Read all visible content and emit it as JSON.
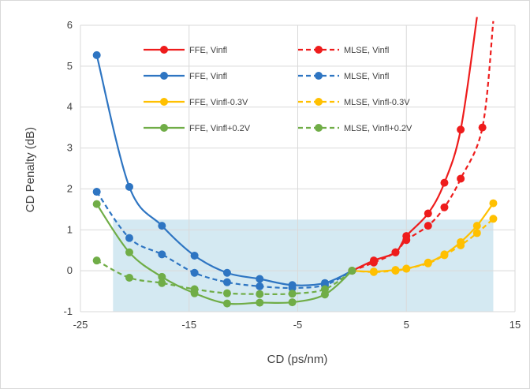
{
  "chart_data": {
    "type": "line",
    "title": "",
    "xlabel": "CD (ps/nm)",
    "ylabel": "CD Penalty (dB)",
    "xlim": [
      -25,
      15
    ],
    "ylim": [
      -1,
      6
    ],
    "x_ticks": [
      "-25",
      "-15",
      "-5",
      "5",
      "15"
    ],
    "y_ticks": [
      "-1",
      "0",
      "1",
      "2",
      "3",
      "4",
      "5",
      "6"
    ],
    "grid": "vertical and horizontal gridlines",
    "legend_position": "top, inside plot, two columns",
    "shaded_region": {
      "x": [
        -22,
        13
      ],
      "y": [
        -1,
        1.25
      ],
      "color": "#d4e9f2"
    },
    "series": [
      {
        "name": "FFE, Vinfl",
        "color": "#ee1c1c",
        "dashed": false,
        "x": [
          0,
          2,
          4,
          5,
          7,
          8.5,
          10,
          11.5
        ],
        "y": [
          0,
          0.25,
          0.45,
          0.85,
          1.4,
          2.15,
          3.45,
          6.2
        ]
      },
      {
        "name": "MLSE, Vinfl",
        "color": "#ee1c1c",
        "dashed": true,
        "x": [
          0,
          2,
          4,
          5,
          7,
          8.5,
          10,
          12,
          13
        ],
        "y": [
          0,
          0.2,
          0.45,
          0.75,
          1.1,
          1.55,
          2.25,
          3.5,
          6.1
        ]
      },
      {
        "name": "FFE, Vinfl",
        "color": "#2e75c2",
        "dashed": false,
        "x": [
          -23.5,
          -20.5,
          -17.5,
          -14.5,
          -11.5,
          -8.5,
          -5.5,
          -2.5,
          0
        ],
        "y": [
          5.27,
          2.05,
          1.1,
          0.37,
          -0.05,
          -0.2,
          -0.35,
          -0.3,
          0
        ]
      },
      {
        "name": "MLSE, Vinfl",
        "color": "#2e75c2",
        "dashed": true,
        "x": [
          -23.5,
          -20.5,
          -17.5,
          -14.5,
          -11.5,
          -8.5,
          -5.5,
          -2.5,
          0
        ],
        "y": [
          1.93,
          0.8,
          0.4,
          -0.05,
          -0.28,
          -0.38,
          -0.42,
          -0.35,
          0
        ]
      },
      {
        "name": "FFE, Vinfl-0.3V",
        "color": "#ffc000",
        "dashed": false,
        "x": [
          0,
          2,
          4,
          5,
          7,
          8.5,
          10,
          11.5,
          13
        ],
        "y": [
          0,
          -0.02,
          0.02,
          0.05,
          0.2,
          0.4,
          0.7,
          1.1,
          1.65
        ]
      },
      {
        "name": "MLSE, Vinfl-0.3V",
        "color": "#ffc000",
        "dashed": true,
        "x": [
          0,
          2,
          4,
          5,
          7,
          8.5,
          10,
          11.5,
          13
        ],
        "y": [
          0,
          -0.03,
          0.0,
          0.05,
          0.18,
          0.38,
          0.62,
          0.92,
          1.27
        ]
      },
      {
        "name": "FFE, Vinfl+0.2V",
        "color": "#70ad47",
        "dashed": false,
        "x": [
          -23.5,
          -20.5,
          -17.5,
          -14.5,
          -11.5,
          -8.5,
          -5.5,
          -2.5,
          0
        ],
        "y": [
          1.63,
          0.45,
          -0.15,
          -0.55,
          -0.8,
          -0.78,
          -0.77,
          -0.58,
          0
        ]
      },
      {
        "name": "MLSE, Vinfl+0.2V",
        "color": "#70ad47",
        "dashed": true,
        "x": [
          -23.5,
          -20.5,
          -17.5,
          -14.5,
          -11.5,
          -8.5,
          -5.5,
          -2.5,
          0
        ],
        "y": [
          0.25,
          -0.17,
          -0.3,
          -0.45,
          -0.55,
          -0.57,
          -0.56,
          -0.45,
          0
        ]
      }
    ]
  }
}
